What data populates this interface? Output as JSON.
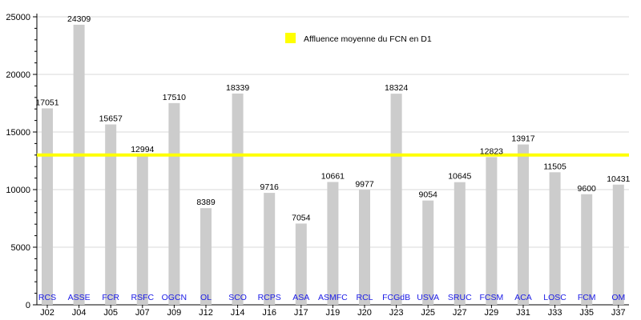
{
  "chart_data": {
    "type": "bar",
    "categories": [
      "J02",
      "J04",
      "J05",
      "J07",
      "J09",
      "J12",
      "J14",
      "J16",
      "J17",
      "J19",
      "J20",
      "J23",
      "J25",
      "J27",
      "J29",
      "J31",
      "J33",
      "J35",
      "J37"
    ],
    "clubs": [
      "RCS",
      "ASSE",
      "FCR",
      "RSFC",
      "OGCN",
      "OL",
      "SCO",
      "RCPS",
      "ASA",
      "ASMFC",
      "RCL",
      "FCGdB",
      "USVA",
      "SRUC",
      "FCSM",
      "ACA",
      "LOSC",
      "FCM",
      "OM"
    ],
    "values": [
      17051,
      24309,
      15657,
      12994,
      17510,
      8389,
      18339,
      9716,
      7054,
      10661,
      9977,
      18324,
      9054,
      10645,
      12823,
      13917,
      11505,
      9600,
      10431
    ],
    "ylim": [
      0,
      25000
    ],
    "yticks": [
      0,
      5000,
      10000,
      15000,
      20000,
      25000
    ],
    "reference_line": {
      "value": 13000,
      "label": "Affluence moyenne du FCN en D1",
      "color": "#ffff00"
    },
    "bar_color": "#cccccc",
    "club_label_color": "#1a1ae6",
    "grid": true,
    "legend_position": "top-center",
    "title": "",
    "xlabel": "",
    "ylabel": ""
  }
}
